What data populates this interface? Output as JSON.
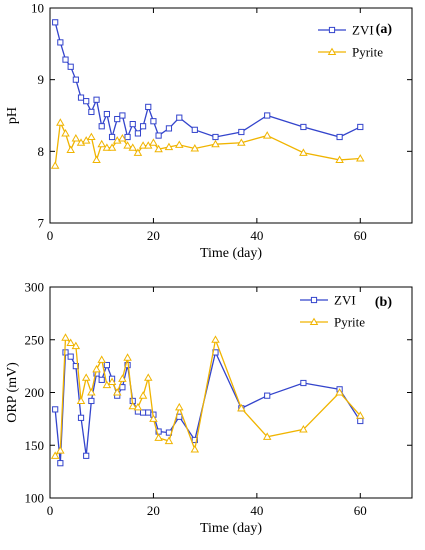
{
  "chart_data": [
    {
      "type": "line",
      "panel_label": "(a)",
      "xlabel": "Time (day)",
      "ylabel": "pH",
      "xlim": [
        0,
        70
      ],
      "ylim": [
        7,
        10
      ],
      "xticks": [
        "0",
        "20",
        "40",
        "60"
      ],
      "yticks": [
        "7",
        "8",
        "9",
        "10"
      ],
      "legend_position": "top-right",
      "series": [
        {
          "name": "ZVI",
          "color": "#3344cc",
          "marker": "square",
          "x": [
            1,
            2,
            3,
            4,
            5,
            6,
            7,
            8,
            9,
            10,
            11,
            12,
            13,
            14,
            15,
            16,
            17,
            18,
            19,
            20,
            21,
            23,
            25,
            28,
            32,
            37,
            42,
            49,
            56,
            60
          ],
          "y": [
            9.8,
            9.52,
            9.28,
            9.18,
            9.0,
            8.75,
            8.7,
            8.55,
            8.72,
            8.35,
            8.52,
            8.2,
            8.45,
            8.5,
            8.2,
            8.38,
            8.25,
            8.35,
            8.62,
            8.42,
            8.22,
            8.32,
            8.47,
            8.3,
            8.2,
            8.27,
            8.5,
            8.34,
            8.2,
            8.34
          ]
        },
        {
          "name": "Pyrite",
          "color": "#f0b400",
          "marker": "triangle",
          "x": [
            1,
            2,
            3,
            4,
            5,
            6,
            7,
            8,
            9,
            10,
            11,
            12,
            13,
            14,
            15,
            16,
            17,
            18,
            19,
            20,
            21,
            23,
            25,
            28,
            32,
            37,
            42,
            49,
            56,
            60
          ],
          "y": [
            7.8,
            8.4,
            8.25,
            8.02,
            8.18,
            8.12,
            8.15,
            8.2,
            7.88,
            8.1,
            8.05,
            8.05,
            8.15,
            8.18,
            8.08,
            8.05,
            7.98,
            8.08,
            8.08,
            8.12,
            8.03,
            8.06,
            8.09,
            8.04,
            8.1,
            8.12,
            8.22,
            7.98,
            7.88,
            7.9
          ]
        }
      ]
    },
    {
      "type": "line",
      "panel_label": "(b)",
      "xlabel": "Time (day)",
      "ylabel": "ORP (mV)",
      "xlim": [
        0,
        70
      ],
      "ylim": [
        100,
        300
      ],
      "xticks": [
        "0",
        "20",
        "40",
        "60"
      ],
      "yticks": [
        "100",
        "150",
        "200",
        "250",
        "300"
      ],
      "legend_position": "top-right",
      "series": [
        {
          "name": "ZVI",
          "color": "#3344cc",
          "marker": "square",
          "x": [
            1,
            2,
            3,
            4,
            5,
            6,
            7,
            8,
            9,
            10,
            11,
            12,
            13,
            14,
            15,
            16,
            17,
            18,
            19,
            20,
            21,
            23,
            25,
            28,
            32,
            37,
            42,
            49,
            56,
            60
          ],
          "y": [
            184,
            133,
            238,
            234,
            225,
            176,
            140,
            192,
            218,
            212,
            226,
            213,
            197,
            205,
            226,
            192,
            182,
            181,
            181,
            179,
            163,
            162,
            177,
            155,
            238,
            185,
            197,
            209,
            203,
            173
          ]
        },
        {
          "name": "Pyrite",
          "color": "#f0b400",
          "marker": "triangle",
          "x": [
            1,
            2,
            3,
            4,
            5,
            6,
            7,
            8,
            9,
            10,
            11,
            12,
            13,
            14,
            15,
            16,
            17,
            18,
            19,
            20,
            21,
            23,
            25,
            28,
            32,
            37,
            42,
            49,
            56,
            60
          ],
          "y": [
            140,
            145,
            252,
            247,
            244,
            192,
            214,
            200,
            222,
            231,
            207,
            210,
            200,
            213,
            233,
            187,
            186,
            197,
            214,
            175,
            157,
            154,
            186,
            146,
            250,
            185,
            158,
            165,
            200,
            178
          ]
        }
      ]
    }
  ]
}
